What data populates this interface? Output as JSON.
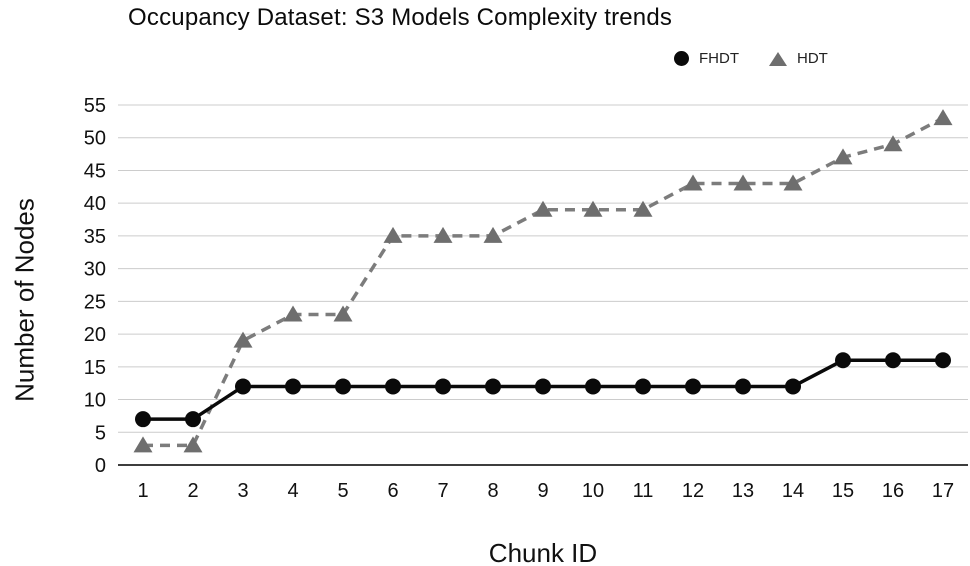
{
  "title": "Occupancy Dataset: S3 Models Complexity trends",
  "legend": [
    {
      "label": "FHDT",
      "marker": "circle-marker-icon",
      "color": "#0a0a0a"
    },
    {
      "label": "HDT",
      "marker": "triangle-marker-icon",
      "color": "#6e6e6e"
    }
  ],
  "chart_data": {
    "type": "line",
    "title": "Occupancy Dataset: S3 Models Complexity trends",
    "xlabel": "Chunk ID",
    "ylabel": "Number of Nodes",
    "x": [
      1,
      2,
      3,
      4,
      5,
      6,
      7,
      8,
      9,
      10,
      11,
      12,
      13,
      14,
      15,
      16,
      17
    ],
    "series": [
      {
        "name": "FHDT",
        "marker": "circle",
        "line_style": "solid",
        "color": "#0a0a0a",
        "values": [
          7,
          7,
          12,
          12,
          12,
          12,
          12,
          12,
          12,
          12,
          12,
          12,
          12,
          12,
          16,
          16,
          16
        ]
      },
      {
        "name": "HDT",
        "marker": "triangle",
        "line_style": "dashed",
        "color": "#6e6e6e",
        "values": [
          3,
          3,
          19,
          23,
          23,
          35,
          35,
          35,
          39,
          39,
          39,
          43,
          43,
          43,
          47,
          49,
          53
        ]
      }
    ],
    "ylim": [
      0,
      55
    ],
    "yticks": [
      0,
      5,
      10,
      15,
      20,
      25,
      30,
      35,
      40,
      45,
      50,
      55
    ],
    "grid": true,
    "legend_position": "top-right",
    "colors": {
      "grid": "#cccccc",
      "zero_axis": "#3d3d3d",
      "tick_text": "#111111",
      "hdt_line": "#7c7c7c"
    }
  }
}
